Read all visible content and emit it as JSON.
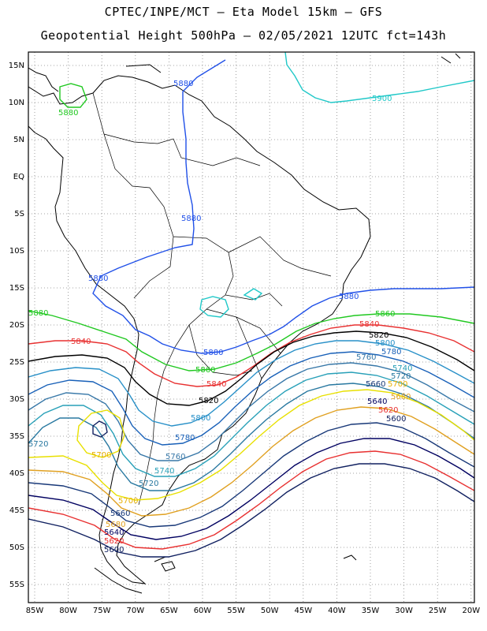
{
  "title_line1": "CPTEC/INPE/MCT –  Eta Model 15km – GFS",
  "title_line2": "Geopotential Height 500hPa – 02/05/2021 12UTC fct=143h",
  "lat_labels": [
    "15N",
    "10N",
    "5N",
    "EQ",
    "5S",
    "10S",
    "15S",
    "20S",
    "25S",
    "30S",
    "35S",
    "40S",
    "45S",
    "50S",
    "55S"
  ],
  "lon_labels": [
    "85W",
    "80W",
    "75W",
    "70W",
    "65W",
    "60W",
    "55W",
    "50W",
    "45W",
    "40W",
    "35W",
    "30W",
    "25W",
    "20W"
  ],
  "contours": [
    {
      "value": 5900,
      "color": "#20c8c8"
    },
    {
      "value": 5880,
      "color": "#2050e8"
    },
    {
      "value": 5860,
      "color": "#20c820"
    },
    {
      "value": 5840,
      "color": "#e83030"
    },
    {
      "value": 5820,
      "color": "#000000"
    },
    {
      "value": 5800,
      "color": "#2890c8"
    },
    {
      "value": 5780,
      "color": "#1860b8"
    },
    {
      "value": 5760,
      "color": "#3878a8"
    },
    {
      "value": 5740,
      "color": "#28a0b8"
    },
    {
      "value": 5720,
      "color": "#2878a0"
    },
    {
      "value": 5700,
      "color": "#e8e000"
    },
    {
      "value": 5680,
      "color": "#e0a020"
    },
    {
      "value": 5660,
      "color": "#183878"
    },
    {
      "value": 5640,
      "color": "#000060"
    },
    {
      "value": 5620,
      "color": "#e83030"
    },
    {
      "value": 5600,
      "color": "#102060"
    }
  ],
  "labels": {
    "l5880a": "5880",
    "l5880b": "5880",
    "l5880c": "5880",
    "l5880d": "5880",
    "l5880e": "5880",
    "l5880f": "5880",
    "l5880g": "5880",
    "l5900": "5900",
    "l5860a": "5860",
    "l5860b": "5860",
    "l5860c": "5860",
    "l5840a": "5840",
    "l5840b": "5840",
    "l5840c": "5840",
    "l5820a": "5820",
    "l5820b": "5820",
    "l5800a": "5800",
    "l5800b": "5800",
    "l5780a": "5780",
    "l5780b": "5780",
    "l5760a": "5760",
    "l5760b": "5760",
    "l5740a": "5740",
    "l5740b": "5740",
    "l5720a": "5720",
    "l5720b": "5720",
    "l5720c": "5720",
    "l5700a": "5700",
    "l5700b": "5700",
    "l5700c": "5700",
    "l5680a": "5680",
    "l5680b": "5680",
    "l5660a": "5660",
    "l5660b": "5660",
    "l5640a": "5640",
    "l5640b": "5640",
    "l5620a": "5620",
    "l5620b": "5620",
    "l5600a": "5600",
    "l5600b": "5600"
  }
}
